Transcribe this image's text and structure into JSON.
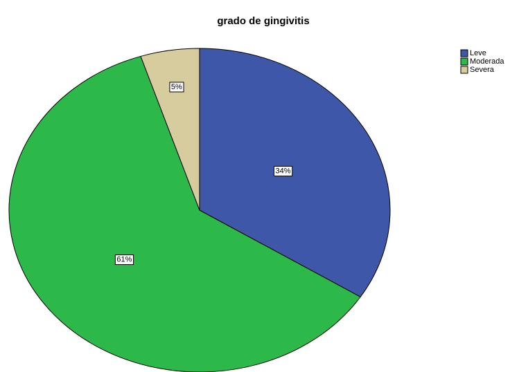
{
  "chart_data": {
    "type": "pie",
    "title": "grado de gingivitis",
    "categories": [
      "Leve",
      "Moderada",
      "Severa"
    ],
    "values": [
      34,
      61,
      5
    ],
    "value_labels": [
      "34%",
      "61%",
      "5%"
    ],
    "colors": [
      "#3f57a8",
      "#2db84a",
      "#d6cc9d"
    ],
    "legend": "top-right"
  }
}
